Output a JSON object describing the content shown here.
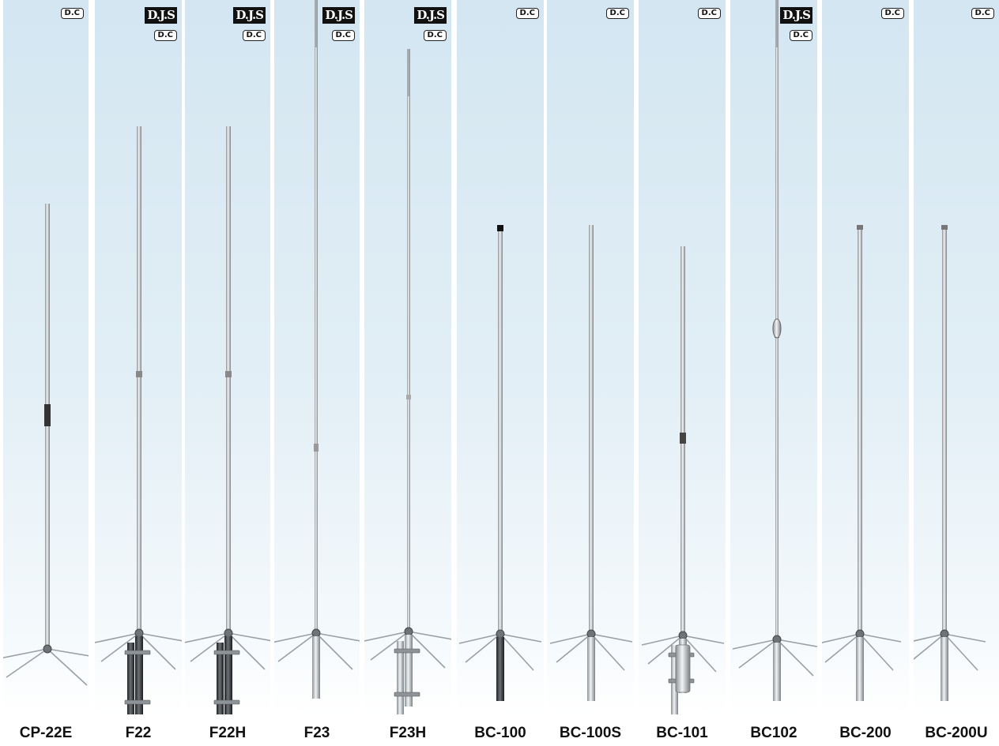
{
  "antennas": [
    {
      "model": "CP-22E",
      "badges": [
        "D.C"
      ]
    },
    {
      "model": "F22",
      "badges": [
        "D.J.S",
        "D.C"
      ]
    },
    {
      "model": "F22H",
      "badges": [
        "D.J.S",
        "D.C"
      ]
    },
    {
      "model": "F23",
      "badges": [
        "D.J.S",
        "D.C"
      ]
    },
    {
      "model": "F23H",
      "badges": [
        "D.J.S",
        "D.C"
      ]
    },
    {
      "model": "BC-100",
      "badges": [
        "D.C"
      ]
    },
    {
      "model": "BC-100S",
      "badges": [
        "D.C"
      ]
    },
    {
      "model": "BC-101",
      "badges": [
        "D.C"
      ]
    },
    {
      "model": "BC102",
      "badges": [
        "D.J.S",
        "D.C"
      ]
    },
    {
      "model": "BC-200",
      "badges": [
        "D.C"
      ]
    },
    {
      "model": "BC-200U",
      "badges": [
        "D.C"
      ]
    }
  ],
  "colors": {
    "sky_top": "#d3e6f1",
    "sky_bottom": "#ffffff",
    "metal": "#b9bec3",
    "metal_dark": "#3a3d40",
    "label": "#111111"
  }
}
